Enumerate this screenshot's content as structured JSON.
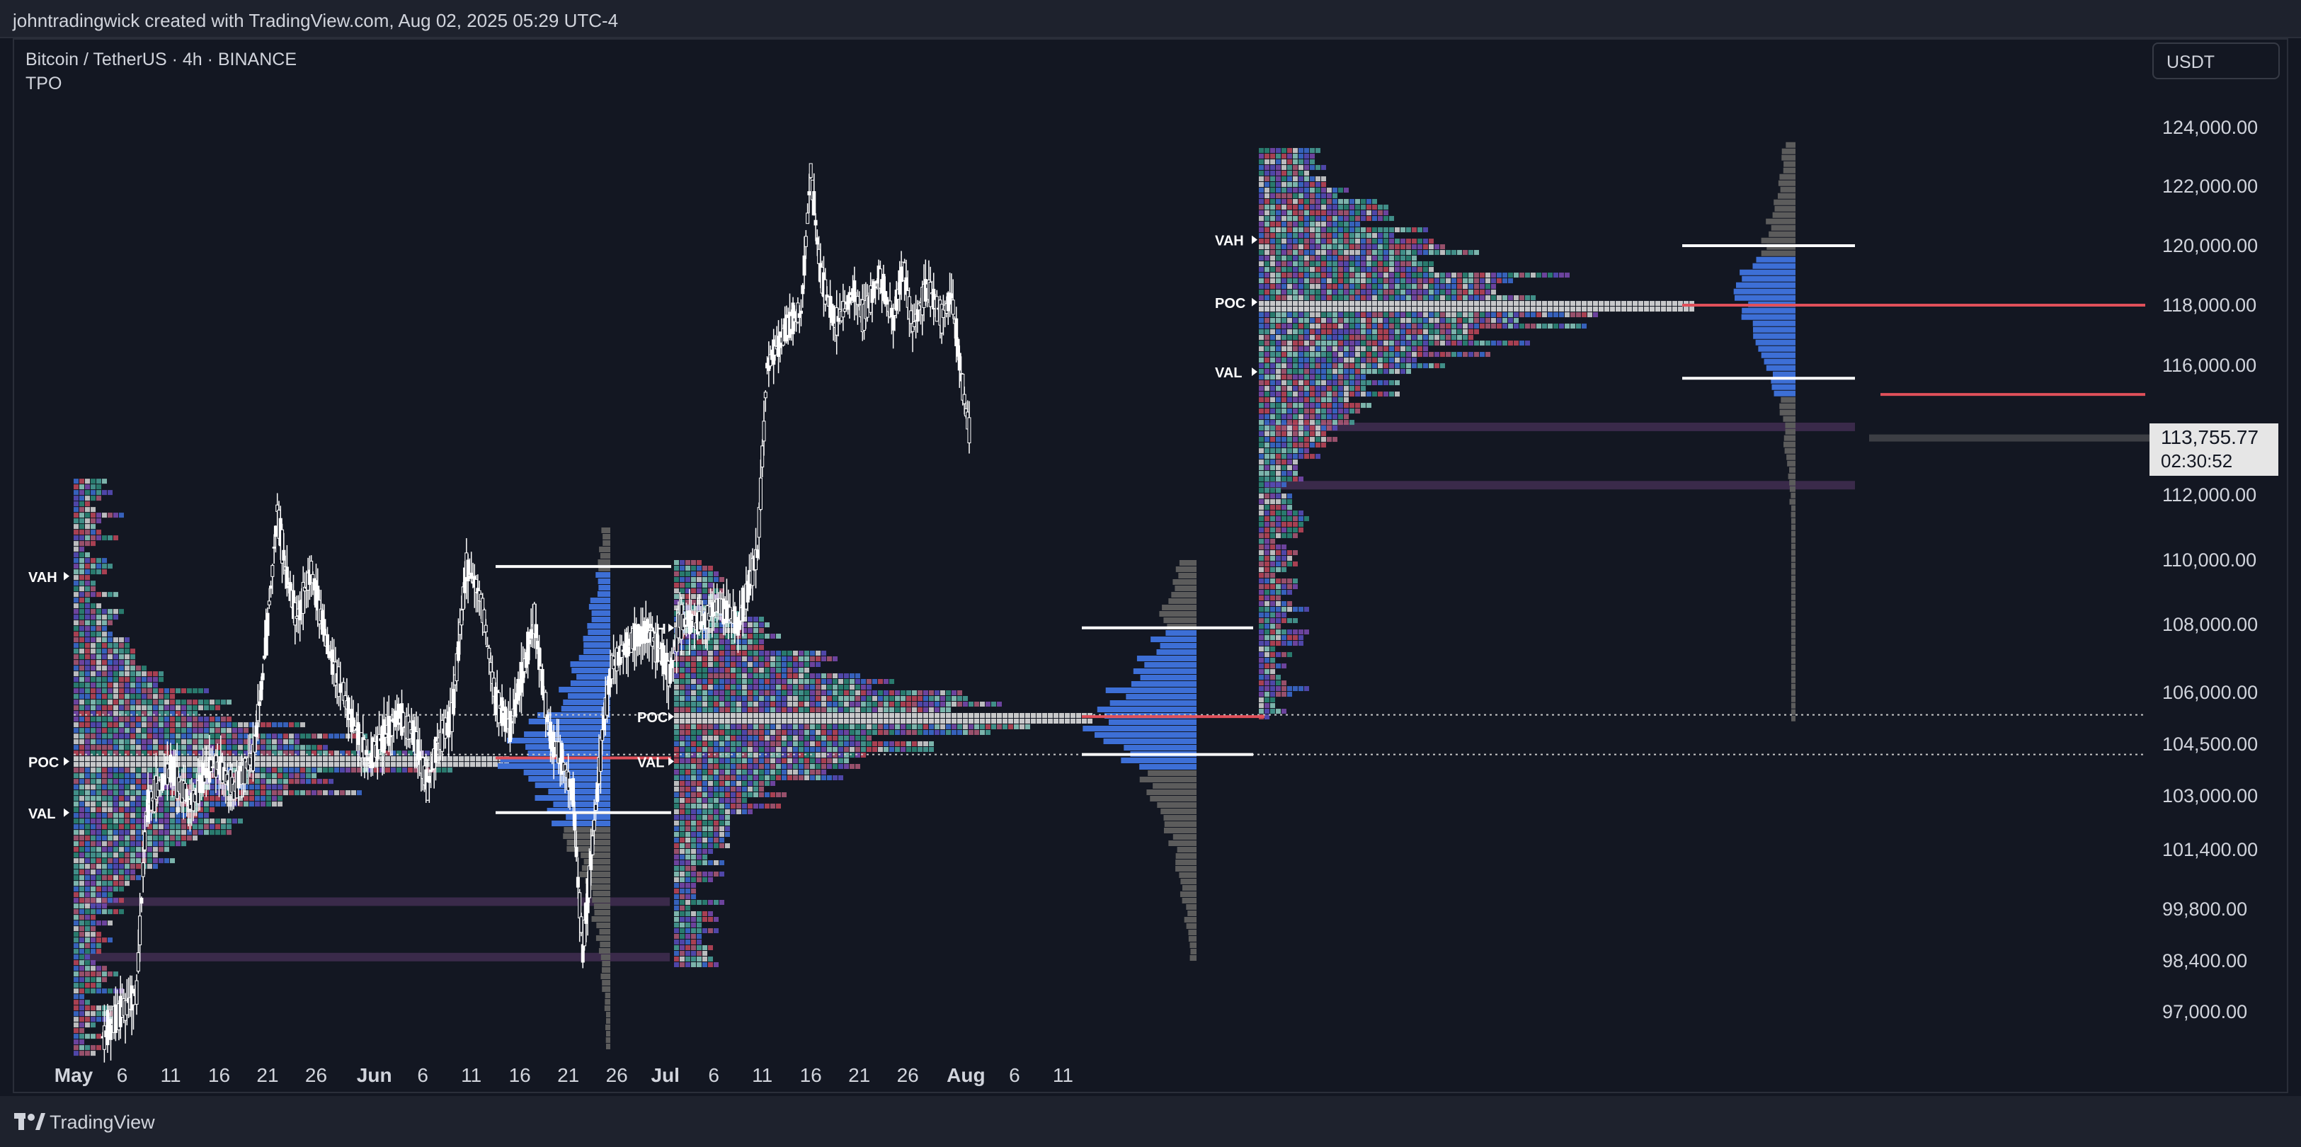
{
  "header": {
    "caption": "johntradingwick created with TradingView.com, Aug 02, 2025 05:29 UTC-4"
  },
  "legend": {
    "symbol": "Bitcoin / TetherUS · 4h · BINANCE",
    "indicator": "TPO"
  },
  "currency_button": {
    "label": "USDT"
  },
  "price_tag": {
    "price": "113,755.77",
    "countdown": "02:30:52"
  },
  "footer": {
    "brand": "TradingView"
  },
  "colors": {
    "background": "#131722",
    "candle": "#ffffff",
    "poc": "#e0505a",
    "volume_profile": "#3d6fd6",
    "profile_gray": "#8a8a8a",
    "band": "#3a2a4a",
    "grid_dots": "#c8c8c8"
  },
  "chart_data": {
    "type": "candlestick",
    "y_axis": {
      "ticks": [
        124000,
        122000,
        120000,
        118000,
        116000,
        112000,
        110000,
        108000,
        106000,
        104500,
        103000,
        101400,
        99800,
        98400,
        97000
      ],
      "tick_labels": [
        "124,000.00",
        "122,000.00",
        "120,000.00",
        "118,000.00",
        "116,000.00",
        "112,000.00",
        "110,000.00",
        "108,000.00",
        "106,000.00",
        "104,500.00",
        "103,000.00",
        "101,400.00",
        "99,800.00",
        "98,400.00",
        "97,000.00"
      ]
    },
    "x_axis": {
      "ticks": [
        {
          "label": "May",
          "day": 0
        },
        {
          "label": "6",
          "day": 5
        },
        {
          "label": "11",
          "day": 10
        },
        {
          "label": "16",
          "day": 15
        },
        {
          "label": "21",
          "day": 20
        },
        {
          "label": "26",
          "day": 25
        },
        {
          "label": "Jun",
          "day": 31
        },
        {
          "label": "6",
          "day": 36
        },
        {
          "label": "11",
          "day": 41
        },
        {
          "label": "16",
          "day": 46
        },
        {
          "label": "21",
          "day": 51
        },
        {
          "label": "26",
          "day": 56
        },
        {
          "label": "Jul",
          "day": 61
        },
        {
          "label": "6",
          "day": 66
        },
        {
          "label": "11",
          "day": 71
        },
        {
          "label": "16",
          "day": 76
        },
        {
          "label": "21",
          "day": 81
        },
        {
          "label": "26",
          "day": 86
        },
        {
          "label": "Aug",
          "day": 92
        },
        {
          "label": "6",
          "day": 97
        },
        {
          "label": "11",
          "day": 102
        }
      ]
    },
    "price_path": [
      {
        "day": 3,
        "price": 96300
      },
      {
        "day": 5,
        "price": 97000
      },
      {
        "day": 6.5,
        "price": 97500
      },
      {
        "day": 7,
        "price": 100000
      },
      {
        "day": 7.5,
        "price": 102500
      },
      {
        "day": 8.5,
        "price": 103200
      },
      {
        "day": 10,
        "price": 103800
      },
      {
        "day": 12,
        "price": 102800
      },
      {
        "day": 13.5,
        "price": 103500
      },
      {
        "day": 14.5,
        "price": 104000
      },
      {
        "day": 16.5,
        "price": 103200
      },
      {
        "day": 18.5,
        "price": 104200
      },
      {
        "day": 19.5,
        "price": 106500
      },
      {
        "day": 20.3,
        "price": 109000
      },
      {
        "day": 21,
        "price": 111500
      },
      {
        "day": 22,
        "price": 109500
      },
      {
        "day": 23,
        "price": 108200
      },
      {
        "day": 24.5,
        "price": 109700
      },
      {
        "day": 26,
        "price": 107500
      },
      {
        "day": 27.5,
        "price": 106200
      },
      {
        "day": 29,
        "price": 105000
      },
      {
        "day": 30.5,
        "price": 104000
      },
      {
        "day": 32,
        "price": 104700
      },
      {
        "day": 33.5,
        "price": 105300
      },
      {
        "day": 35,
        "price": 104800
      },
      {
        "day": 36.5,
        "price": 103200
      },
      {
        "day": 37.5,
        "price": 104500
      },
      {
        "day": 39,
        "price": 105300
      },
      {
        "day": 40.5,
        "price": 109800
      },
      {
        "day": 42,
        "price": 108800
      },
      {
        "day": 43.5,
        "price": 105800
      },
      {
        "day": 45,
        "price": 105000
      },
      {
        "day": 46.5,
        "price": 106800
      },
      {
        "day": 47.5,
        "price": 108200
      },
      {
        "day": 49,
        "price": 104800
      },
      {
        "day": 50.5,
        "price": 103900
      },
      {
        "day": 51.5,
        "price": 103000
      },
      {
        "day": 52,
        "price": 100500
      },
      {
        "day": 52.5,
        "price": 98700
      },
      {
        "day": 53.5,
        "price": 101500
      },
      {
        "day": 54.5,
        "price": 104800
      },
      {
        "day": 55.5,
        "price": 106800
      },
      {
        "day": 57.5,
        "price": 107500
      },
      {
        "day": 59,
        "price": 107800
      },
      {
        "day": 60.5,
        "price": 107200
      },
      {
        "day": 61.5,
        "price": 106500
      },
      {
        "day": 62.5,
        "price": 108200
      },
      {
        "day": 64.5,
        "price": 108000
      },
      {
        "day": 66.5,
        "price": 108600
      },
      {
        "day": 68.5,
        "price": 108000
      },
      {
        "day": 70.5,
        "price": 110200
      },
      {
        "day": 71.5,
        "price": 116000
      },
      {
        "day": 73.5,
        "price": 117200
      },
      {
        "day": 75,
        "price": 117800
      },
      {
        "day": 76,
        "price": 122500
      },
      {
        "day": 77,
        "price": 119000
      },
      {
        "day": 78.5,
        "price": 117400
      },
      {
        "day": 80.5,
        "price": 118400
      },
      {
        "day": 81.5,
        "price": 117600
      },
      {
        "day": 83,
        "price": 119000
      },
      {
        "day": 84.5,
        "price": 117500
      },
      {
        "day": 85.5,
        "price": 119400
      },
      {
        "day": 86.5,
        "price": 117200
      },
      {
        "day": 88,
        "price": 118700
      },
      {
        "day": 89.5,
        "price": 117600
      },
      {
        "day": 90.5,
        "price": 118300
      },
      {
        "day": 91.5,
        "price": 115700
      },
      {
        "day": 92,
        "price": 114500
      },
      {
        "day": 92.5,
        "price": 113800
      }
    ],
    "profiles": [
      {
        "period": "May",
        "markers": [
          {
            "label": "VAH",
            "price": 109500
          },
          {
            "label": "POC",
            "price": 104000
          },
          {
            "label": "VAL",
            "price": 102500
          }
        ]
      },
      {
        "period": "Jun",
        "markers": [
          {
            "label": "VAH",
            "price": 107900
          },
          {
            "label": "POC",
            "price": 105300
          },
          {
            "label": "VAL",
            "price": 104000
          }
        ]
      },
      {
        "period": "Jul",
        "markers": [
          {
            "label": "VAH",
            "price": 120200
          },
          {
            "label": "POC",
            "price": 118100
          },
          {
            "label": "VAL",
            "price": 115800
          }
        ]
      }
    ],
    "horizontal_levels": [
      {
        "price": 104200,
        "style": "dotted"
      },
      {
        "price": 105350,
        "style": "dotted"
      },
      {
        "price": 118000,
        "style": "solid"
      },
      {
        "price": 115100,
        "style": "solid"
      },
      {
        "price": 114100,
        "style": "band"
      },
      {
        "price": 112300,
        "style": "band"
      },
      {
        "price": 100000,
        "style": "band"
      },
      {
        "price": 98500,
        "style": "band"
      }
    ],
    "last_price": 113755.77
  }
}
